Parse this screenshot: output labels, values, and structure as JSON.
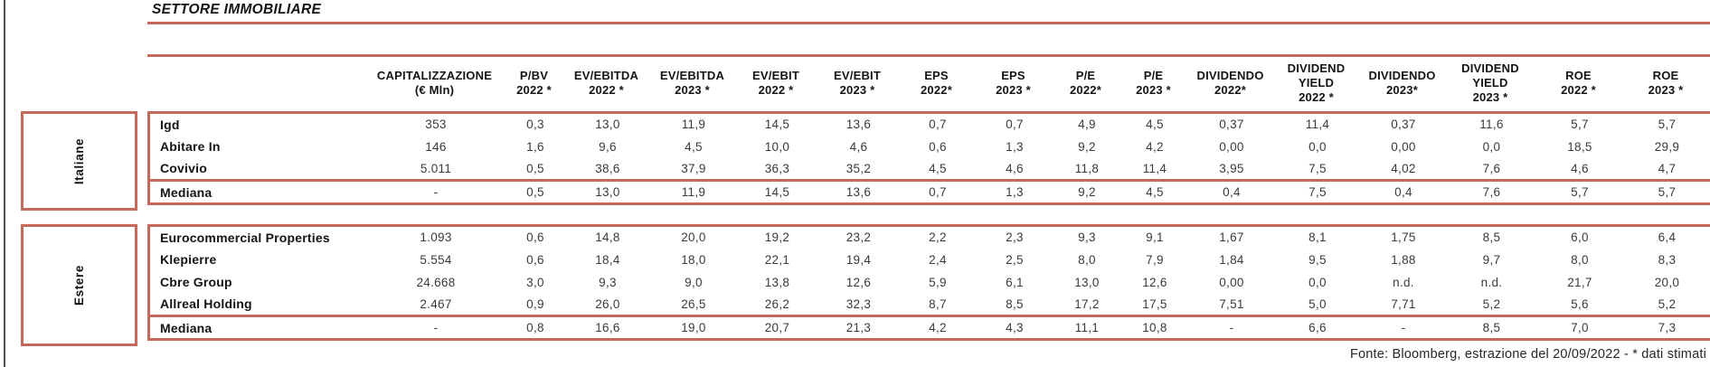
{
  "title": "SETTORE IMMOBILIARE",
  "footer": "Fonte: Bloomberg, estrazione del 20/09/2022 - * dati stimati",
  "colors": {
    "accent": "#C7695A"
  },
  "table": {
    "columns": [
      "CAPITALIZZAZIONE\n(€ Mln)",
      "P/BV\n2022 *",
      "EV/EBITDA\n2022 *",
      "EV/EBITDA\n2023 *",
      "EV/EBIT\n2022 *",
      "EV/EBIT\n2023 *",
      "EPS\n2022*",
      "EPS\n2023 *",
      "P/E\n2022*",
      "P/E\n2023 *",
      "DIVIDENDO\n2022*",
      "DIVIDEND\nYIELD\n2022 *",
      "DIVIDENDO\n2023*",
      "DIVIDEND\nYIELD\n2023 *",
      "ROE\n2022 *",
      "ROE\n2023 *"
    ],
    "groups": [
      {
        "label": "Italiane",
        "rows": [
          {
            "name": "Igd",
            "values": [
              "353",
              "0,3",
              "13,0",
              "11,9",
              "14,5",
              "13,6",
              "0,7",
              "0,7",
              "4,9",
              "4,5",
              "0,37",
              "11,4",
              "0,37",
              "11,6",
              "5,7",
              "5,7"
            ]
          },
          {
            "name": "Abitare In",
            "values": [
              "146",
              "1,6",
              "9,6",
              "4,5",
              "10,0",
              "4,6",
              "0,6",
              "1,3",
              "9,2",
              "4,2",
              "0,00",
              "0,0",
              "0,00",
              "0,0",
              "18,5",
              "29,9"
            ]
          },
          {
            "name": "Covivio",
            "values": [
              "5.011",
              "0,5",
              "38,6",
              "37,9",
              "36,3",
              "35,2",
              "4,5",
              "4,6",
              "11,8",
              "11,4",
              "3,95",
              "7,5",
              "4,02",
              "7,6",
              "4,6",
              "4,7"
            ]
          }
        ],
        "median": {
          "name": "Mediana",
          "values": [
            "-",
            "0,5",
            "13,0",
            "11,9",
            "14,5",
            "13,6",
            "0,7",
            "1,3",
            "9,2",
            "4,5",
            "0,4",
            "7,5",
            "0,4",
            "7,6",
            "5,7",
            "5,7"
          ]
        }
      },
      {
        "label": "Estere",
        "rows": [
          {
            "name": "Eurocommercial Properties",
            "values": [
              "1.093",
              "0,6",
              "14,8",
              "20,0",
              "19,2",
              "23,2",
              "2,2",
              "2,3",
              "9,3",
              "9,1",
              "1,67",
              "8,1",
              "1,75",
              "8,5",
              "6,0",
              "6,4"
            ]
          },
          {
            "name": "Klepierre",
            "values": [
              "5.554",
              "0,6",
              "18,4",
              "18,0",
              "22,1",
              "19,4",
              "2,4",
              "2,5",
              "8,0",
              "7,9",
              "1,84",
              "9,5",
              "1,88",
              "9,7",
              "8,0",
              "8,3"
            ]
          },
          {
            "name": "Cbre Group",
            "values": [
              "24.668",
              "3,0",
              "9,3",
              "9,0",
              "13,8",
              "12,6",
              "5,9",
              "6,1",
              "13,0",
              "12,6",
              "0,00",
              "0,0",
              "n.d.",
              "n.d.",
              "21,7",
              "20,0"
            ]
          },
          {
            "name": "Allreal Holding",
            "values": [
              "2.467",
              "0,9",
              "26,0",
              "26,5",
              "26,2",
              "32,3",
              "8,7",
              "8,5",
              "17,2",
              "17,5",
              "7,51",
              "5,0",
              "7,71",
              "5,2",
              "5,6",
              "5,2"
            ]
          }
        ],
        "median": {
          "name": "Mediana",
          "values": [
            "-",
            "0,8",
            "16,6",
            "19,0",
            "20,7",
            "21,3",
            "4,2",
            "4,3",
            "11,1",
            "10,8",
            "-",
            "6,6",
            "-",
            "8,5",
            "7,0",
            "7,3"
          ]
        }
      }
    ]
  }
}
